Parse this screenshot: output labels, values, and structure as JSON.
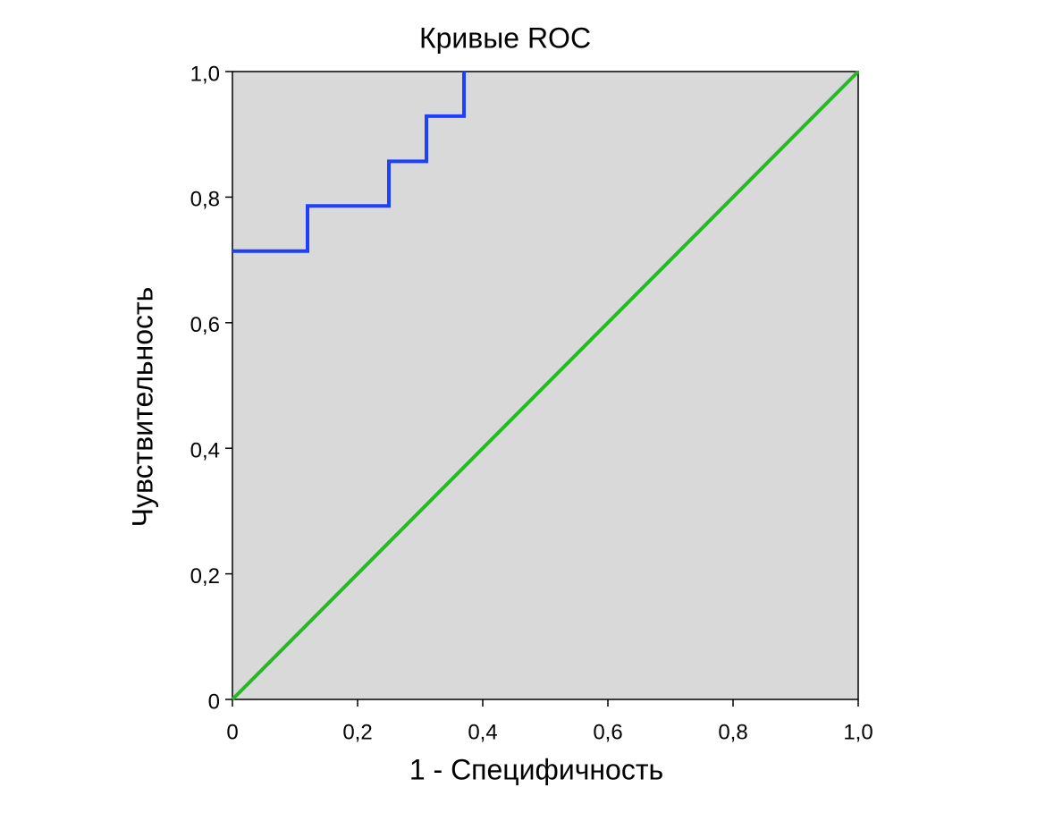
{
  "chart_data": {
    "type": "line",
    "title": "Кривые ROC",
    "x_label": "1 - Специфичность",
    "y_label": "Чувствительность",
    "series": [
      {
        "color": "#1f3fff",
        "x": [
          0,
          0.12,
          0.12,
          0.25,
          0.25,
          0.31,
          0.31,
          0.37,
          0.37
        ],
        "values": [
          0.714,
          0.714,
          0.786,
          0.786,
          0.857,
          0.857,
          0.929,
          0.929,
          1.0
        ]
      },
      {
        "color": "#22bb22",
        "x": [
          0,
          1
        ],
        "values": [
          0,
          1
        ]
      }
    ],
    "xlim": [
      0,
      1
    ],
    "ylim": [
      0,
      1
    ],
    "xticks": [
      0,
      {
        "value": 0.2,
        "label": "0,2"
      },
      {
        "value": 0.4,
        "label": "0,4"
      },
      {
        "value": 0.6,
        "label": "0,6"
      },
      {
        "value": 0.8,
        "label": "0,8"
      },
      {
        "value": 1,
        "label": "1,0"
      }
    ],
    "yticks": [
      0,
      {
        "value": 0.2,
        "label": "0,2"
      },
      {
        "value": 0.4,
        "label": "0,4"
      },
      {
        "value": 0.6,
        "label": "0,6"
      },
      {
        "value": 0.8,
        "label": "0,8"
      },
      {
        "value": 1,
        "label": "1,0"
      }
    ],
    "background": "#d9d9d9"
  }
}
